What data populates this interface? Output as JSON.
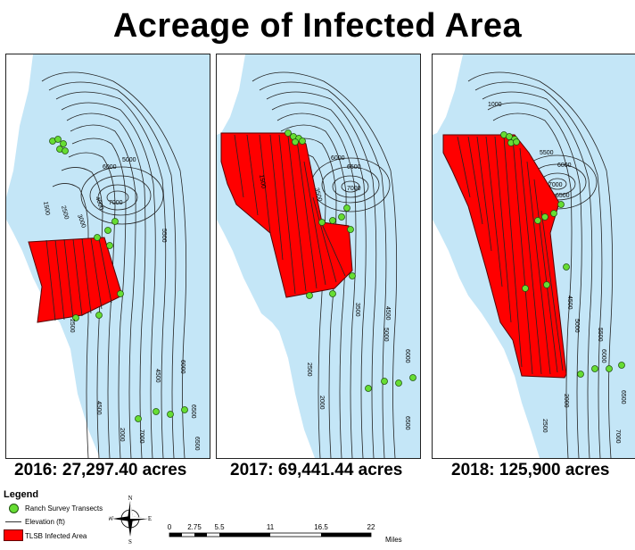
{
  "title": "Acreage of Infected Area",
  "panels": [
    {
      "caption": "2016: 27,297.40 acres",
      "contour_labels": [
        "1500",
        "5000",
        "3000",
        "6000",
        "2500",
        "7000",
        "4000",
        "5500",
        "4500",
        "2500",
        "2000",
        "6000",
        "4500",
        "6500",
        "7000",
        "6500"
      ]
    },
    {
      "caption": "2017: 69,441.44 acres",
      "contour_labels": [
        "6000",
        "6500",
        "1500",
        "3500",
        "7000",
        "3500",
        "4500",
        "5000",
        "6000",
        "2000",
        "2500",
        "6500"
      ]
    },
    {
      "caption": "2018: 125,900 acres",
      "contour_labels": [
        "1000",
        "5500",
        "6000",
        "6500",
        "7000",
        "4500",
        "5000",
        "5500",
        "6000",
        "6500",
        "2000",
        "2500",
        "7000"
      ]
    }
  ],
  "legend": {
    "title": "Legend",
    "items": [
      {
        "symbol": "green-circle",
        "label": "Ranch Survey Transects"
      },
      {
        "symbol": "line",
        "label": "Elevation (ft)"
      },
      {
        "symbol": "red-box",
        "label": "TLSB Infected Area"
      }
    ]
  },
  "compass": {
    "n": "N",
    "s": "S",
    "e": "E",
    "w": "W"
  },
  "scale": {
    "ticks": [
      "0",
      "2.75",
      "5.5",
      "11",
      "16.5",
      "22"
    ],
    "unit": "Miles"
  },
  "colors": {
    "water": "#c4e6f7",
    "infected": "#ff0000",
    "transect": "#66dd33",
    "contour": "#222222"
  }
}
